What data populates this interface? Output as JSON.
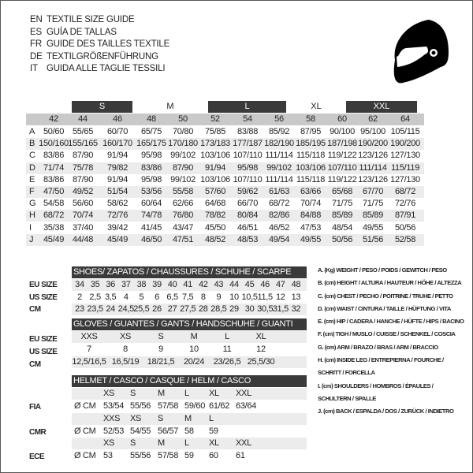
{
  "titles": [
    {
      "lang": "EN",
      "text": "TEXTILE SIZE GUIDE"
    },
    {
      "lang": "ES",
      "text": "GUÍA DE TALLAS"
    },
    {
      "lang": "FR",
      "text": "GUIDE DES TAILLES TEXTILE"
    },
    {
      "lang": "DE",
      "text": "TEXTILGRÖßENFÜHRUNG"
    },
    {
      "lang": "IT",
      "text": "GUIDA ALLE TAGLIE TESSILI"
    }
  ],
  "icon": "helmet-icon",
  "textile": {
    "size_bands": [
      {
        "label": "S",
        "dark": true
      },
      {
        "label": "M",
        "dark": false
      },
      {
        "label": "L",
        "dark": true
      },
      {
        "label": "XL",
        "dark": false
      },
      {
        "label": "XXL",
        "dark": true
      }
    ],
    "columns": [
      "42",
      "44",
      "46",
      "48",
      "50",
      "52",
      "54",
      "56",
      "58",
      "60",
      "62",
      "64"
    ],
    "rows": [
      {
        "key": "A",
        "values": [
          "50/60",
          "55/65",
          "60/70",
          "65/75",
          "70/80",
          "75/85",
          "83/88",
          "85/92",
          "87/95",
          "90/100",
          "95/100",
          "105/115"
        ]
      },
      {
        "key": "B",
        "values": [
          "150/160",
          "155/165",
          "160/170",
          "165/175",
          "170/180",
          "173/183",
          "177/187",
          "182/190",
          "185/195",
          "187/198",
          "190/200",
          "190/200"
        ]
      },
      {
        "key": "C",
        "values": [
          "83/86",
          "87/90",
          "91/94",
          "95/98",
          "99/102",
          "103/106",
          "107/110",
          "111/114",
          "115/118",
          "119/122",
          "123/126",
          "127/130"
        ]
      },
      {
        "key": "D",
        "values": [
          "71/74",
          "75/78",
          "79/82",
          "83/86",
          "87/90",
          "91/94",
          "95/98",
          "99/102",
          "103/106",
          "107/110",
          "111/114",
          "115/119"
        ]
      },
      {
        "key": "E",
        "values": [
          "83/86",
          "87/90",
          "91/94",
          "95/98",
          "99/102",
          "103/106",
          "107/110",
          "111/114",
          "115/118",
          "119/122",
          "123/126",
          "127/130"
        ]
      },
      {
        "key": "F",
        "values": [
          "47/50",
          "49/52",
          "51/54",
          "53/56",
          "55/58",
          "57/60",
          "59/62",
          "61/63",
          "63/66",
          "65/68",
          "67/70",
          "68/72"
        ]
      },
      {
        "key": "G",
        "values": [
          "54/58",
          "56/60",
          "58/62",
          "60/64",
          "62/66",
          "64/68",
          "66/70",
          "68/72",
          "70/74",
          "71/75",
          "71/75",
          "72/76"
        ]
      },
      {
        "key": "H",
        "values": [
          "68/72",
          "70/74",
          "72/76",
          "74/78",
          "76/80",
          "78/82",
          "80/84",
          "82/86",
          "84/88",
          "85/89",
          "85/89",
          "87/91"
        ]
      },
      {
        "key": "I",
        "values": [
          "35/38",
          "37/40",
          "39/42",
          "41/45",
          "43/47",
          "45/50",
          "46/51",
          "46/52",
          "47/53",
          "48/54",
          "49/55",
          "50/56"
        ]
      },
      {
        "key": "J",
        "values": [
          "45/49",
          "44/48",
          "45/49",
          "46/50",
          "47/51",
          "48/52",
          "48/53",
          "49/54",
          "49/55",
          "50/56",
          "51/56",
          "52/58"
        ]
      }
    ]
  },
  "shoes": {
    "title": "SHOES/ ZAPATOS / CHAUSSURES / SCHUHE / SCARPE",
    "rows": [
      {
        "label": "EU SIZE",
        "values": [
          "34",
          "35",
          "36",
          "37",
          "38",
          "39",
          "40",
          "41",
          "42",
          "43",
          "44",
          "45",
          "46",
          "47",
          "48"
        ]
      },
      {
        "label": "US SIZE",
        "values": [
          "2",
          "2,5",
          "3,5",
          "4",
          "5",
          "6",
          "6,5",
          "7,5",
          "8",
          "9",
          "10",
          "10,5",
          "11,5",
          "12",
          "13"
        ]
      },
      {
        "label": "CM",
        "values": [
          "23",
          "23,5",
          "24",
          "24,5",
          "25,5",
          "26",
          "27",
          "27,5",
          "28",
          "28,5",
          "29",
          "30",
          "30,5",
          "31,5",
          "32"
        ]
      }
    ]
  },
  "gloves": {
    "title": "GLOVES / GUANTES / GANTS / HANDSCHUHE / GUANTI",
    "rows": [
      {
        "label": "EU SIZE",
        "values": [
          "XXS",
          "XS",
          "S",
          "M",
          "L",
          "XL"
        ]
      },
      {
        "label": "US SIZE",
        "values": [
          "7",
          "8",
          "9",
          "10",
          "11",
          "12"
        ]
      },
      {
        "label": "CM",
        "values": [
          "12,5/16,5",
          "16,5/19",
          "18/21,5",
          "20/24",
          "23/26,5",
          "25,5/30"
        ]
      }
    ]
  },
  "helmet": {
    "title": "HELMET / CASCO / CASQUE / HELM / CASCO",
    "unit": "Ø CM",
    "groups": [
      {
        "label": "FIA",
        "sizes": [
          "XS",
          "S",
          "M",
          "L",
          "XL",
          "XXL"
        ],
        "values": [
          "53/54",
          "55/56",
          "57/58",
          "59/60",
          "61/62",
          "63/64"
        ]
      },
      {
        "label": "CMR",
        "sizes": [
          "XXS",
          "XS",
          "S",
          "M",
          "L"
        ],
        "values": [
          "52/53",
          "54/55",
          "56/57",
          "58",
          "59"
        ]
      },
      {
        "label": "ECE",
        "sizes": [
          "XS",
          "S",
          "M",
          "L",
          "XL",
          "XXL"
        ],
        "values": [
          "53",
          "55/56",
          "57/58",
          "59",
          "60",
          "61"
        ]
      }
    ]
  },
  "legend": [
    "A. (Kg) WEIGHT / PESO / POIDS / GEWITCH / PESO",
    "B. (cm) HEIGHT / ALTURA / HAUTEUR / HÖHE / ALTEZZA",
    "C. (cm) CHEST / PECHO / POITRINE / TRUHE / PETTO",
    "D. (cm) WAIST / CINTURA / TAILLE / HÜFTUNG / VITA",
    "E. (cm) HIP / CADERA / HANCHE / HÜFTE / HIPS /  BACINO",
    "F.  (cm) TIGH / MUSLO / CUISSE / SCHENKEL / COSCIA",
    "G. (cm) ARM  / BRAZO / BRAS / ARM / BRACCIO",
    "H. (cm) INSIDE LEG / ENTREPIERNA / FOURCHE /",
    "SCHRITT / FORCELLA",
    "I.  (cm) SHOULDERS / HOMBROS / ÉPAULES /",
    "SCHULTERN / SPALLE",
    "J. (cm) BACK / ESPALDA / DOS / ZURÜCK / INDIETRO"
  ]
}
